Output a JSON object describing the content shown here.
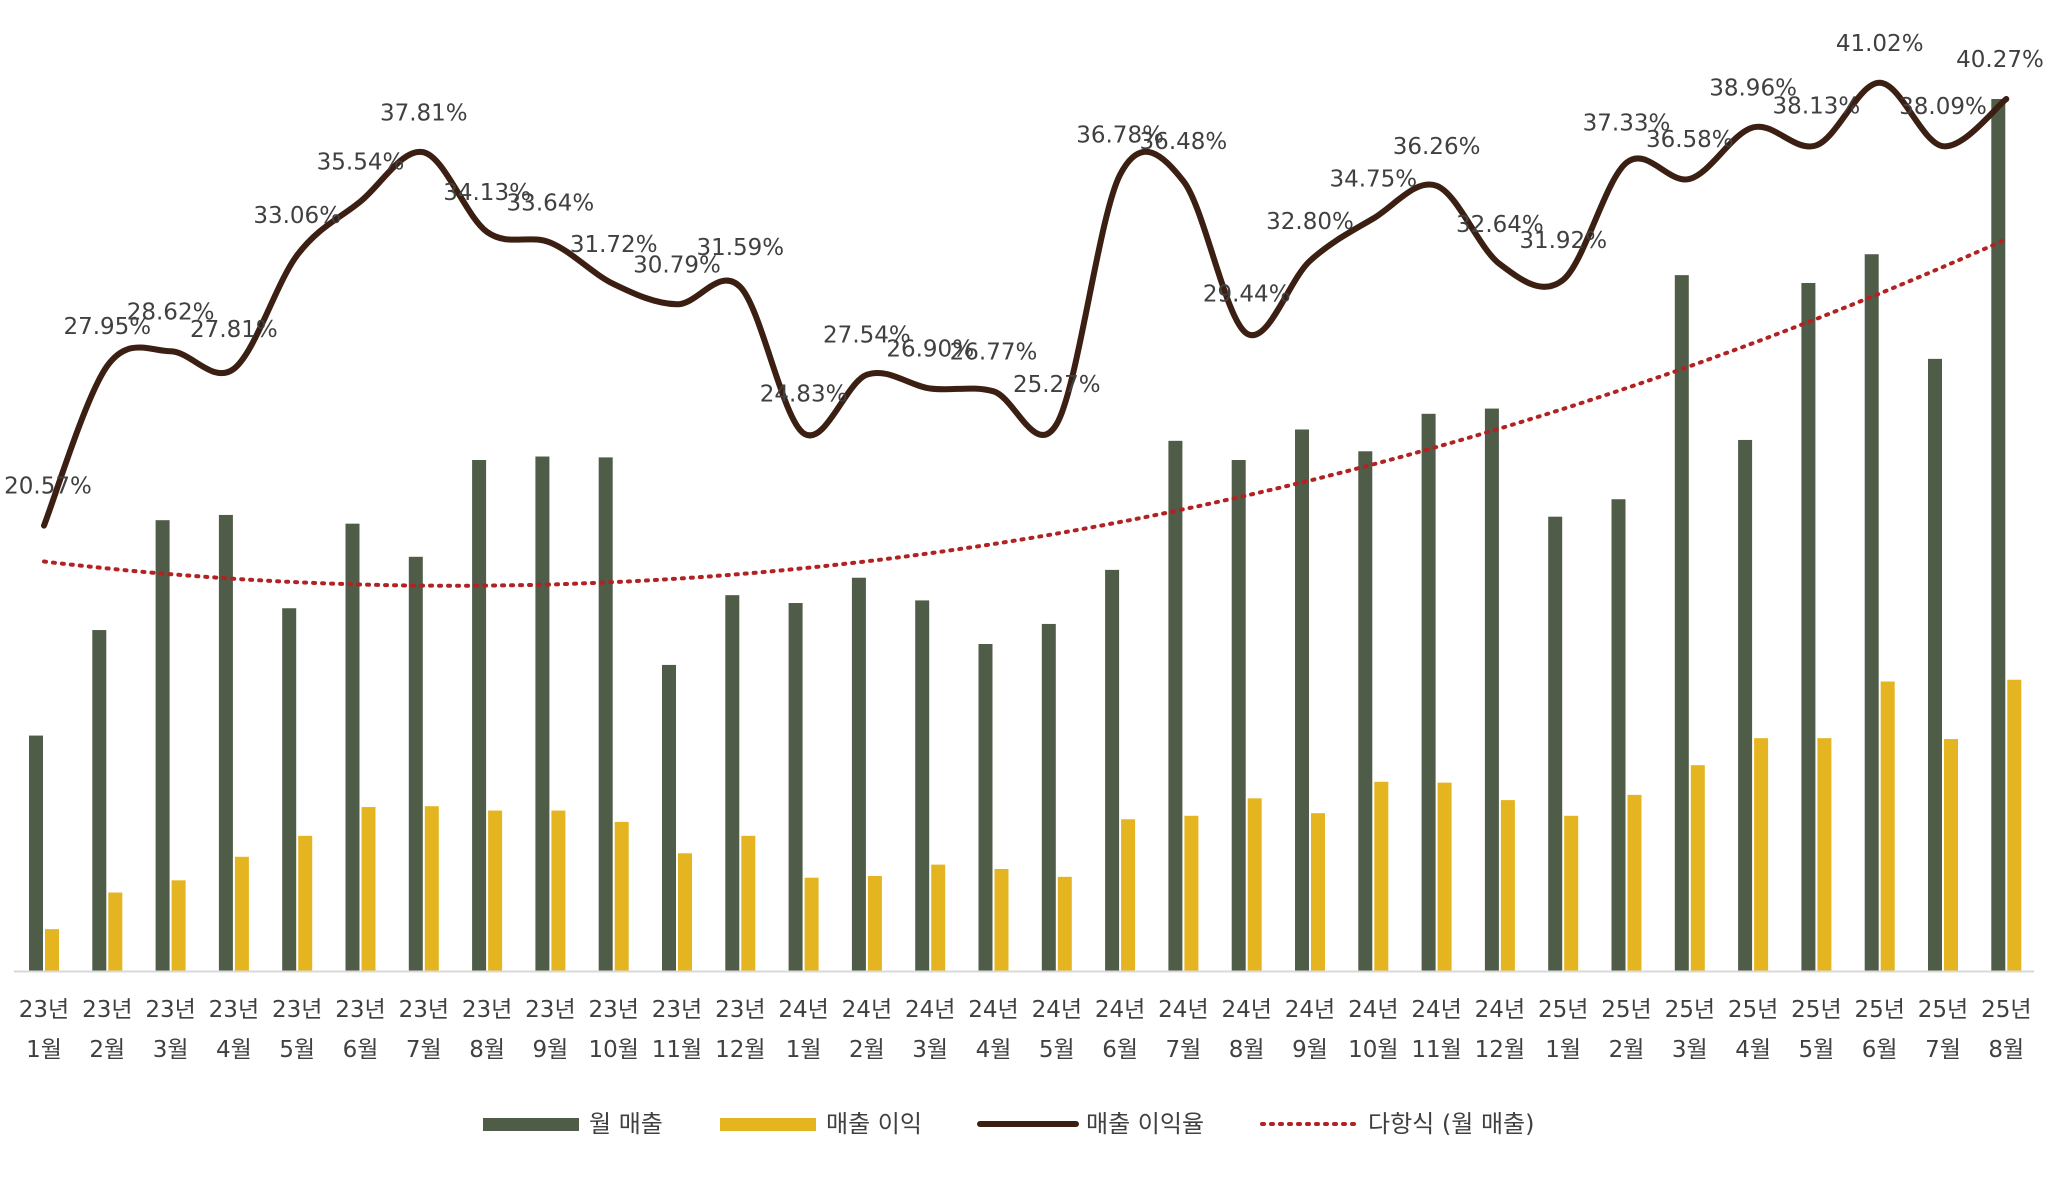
{
  "chart_data": {
    "type": "bar",
    "categories": [
      [
        "23년",
        "1월"
      ],
      [
        "23년",
        "2월"
      ],
      [
        "23년",
        "3월"
      ],
      [
        "23년",
        "4월"
      ],
      [
        "23년",
        "5월"
      ],
      [
        "23년",
        "6월"
      ],
      [
        "23년",
        "7월"
      ],
      [
        "23년",
        "8월"
      ],
      [
        "23년",
        "9월"
      ],
      [
        "23년",
        "10월"
      ],
      [
        "23년",
        "11월"
      ],
      [
        "23년",
        "12월"
      ],
      [
        "24년",
        "1월"
      ],
      [
        "24년",
        "2월"
      ],
      [
        "24년",
        "3월"
      ],
      [
        "24년",
        "4월"
      ],
      [
        "24년",
        "5월"
      ],
      [
        "24년",
        "6월"
      ],
      [
        "24년",
        "7월"
      ],
      [
        "24년",
        "8월"
      ],
      [
        "24년",
        "9월"
      ],
      [
        "24년",
        "10월"
      ],
      [
        "24년",
        "11월"
      ],
      [
        "24년",
        "12월"
      ],
      [
        "25년",
        "1월"
      ],
      [
        "25년",
        "2월"
      ],
      [
        "25년",
        "3월"
      ],
      [
        "25년",
        "4월"
      ],
      [
        "25년",
        "5월"
      ],
      [
        "25년",
        "6월"
      ],
      [
        "25년",
        "7월"
      ],
      [
        "25년",
        "8월"
      ]
    ],
    "ylim": [
      0,
      100
    ],
    "ylim_rate": [
      0,
      45
    ],
    "grid": false,
    "legend_position": "bottom",
    "series": [
      {
        "name": "월 매출",
        "type": "bar",
        "color": "#4f5d48",
        "values": [
          27.0,
          39.1,
          51.7,
          52.3,
          41.6,
          51.3,
          47.5,
          58.6,
          59.0,
          58.9,
          35.1,
          43.1,
          42.2,
          45.1,
          42.5,
          37.5,
          39.8,
          46.0,
          60.8,
          58.6,
          62.1,
          59.6,
          63.9,
          64.5,
          52.1,
          54.1,
          79.8,
          60.9,
          78.9,
          82.2,
          70.2,
          100.0
        ]
      },
      {
        "name": "매출 이익",
        "type": "bar",
        "color": "#e5b521",
        "values": [
          4.8,
          9.0,
          10.4,
          13.1,
          15.5,
          18.8,
          18.9,
          18.4,
          18.4,
          17.1,
          13.5,
          15.5,
          10.7,
          10.9,
          12.2,
          11.7,
          10.8,
          17.4,
          17.8,
          19.8,
          18.1,
          21.7,
          21.6,
          19.6,
          17.8,
          20.2,
          23.6,
          26.7,
          26.7,
          33.2,
          26.6,
          33.4
        ]
      },
      {
        "name": "매출 이익율",
        "type": "line",
        "color": "#3b1f12",
        "values": [
          20.57,
          27.95,
          28.62,
          27.81,
          33.06,
          35.54,
          37.81,
          34.13,
          33.64,
          31.72,
          30.79,
          31.59,
          24.83,
          27.54,
          26.9,
          26.77,
          25.27,
          36.78,
          36.48,
          29.44,
          32.8,
          34.75,
          36.26,
          32.64,
          31.92,
          37.33,
          36.58,
          38.96,
          38.13,
          41.02,
          38.09,
          40.27
        ],
        "labels": [
          "20.57%",
          "27.95%",
          "28.62%",
          "27.81%",
          "33.06%",
          "35.54%",
          "37.81%",
          "34.13%",
          "33.64%",
          "31.72%",
          "30.79%",
          "31.59%",
          "24.83%",
          "27.54%",
          "26.90%",
          "26.77%",
          "25.27%",
          "36.78%",
          "36.48%",
          "29.44%",
          "32.80%",
          "34.75%",
          "36.26%",
          "32.64%",
          "31.92%",
          "37.33%",
          "36.58%",
          "38.96%",
          "38.13%",
          "41.02%",
          "38.09%",
          "40.27%"
        ]
      },
      {
        "name": "다항식 (월 매출)",
        "type": "trendline",
        "color": "#b22222"
      }
    ]
  }
}
